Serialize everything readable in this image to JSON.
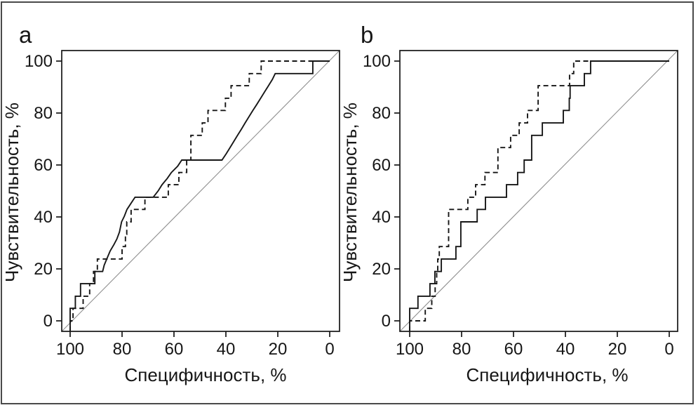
{
  "figure": {
    "description": "Two-panel ROC curve figure",
    "frame_color": "#4a4a4a",
    "background": "#ffffff",
    "panel_letters": [
      "a",
      "b"
    ]
  },
  "chart_data": [
    {
      "panel": "a",
      "type": "line",
      "title": "",
      "xlabel": "Специфичность, %",
      "ylabel": "Чувствительность, %",
      "x_ticks": [
        100,
        80,
        60,
        40,
        20,
        0
      ],
      "y_ticks": [
        0,
        20,
        40,
        60,
        80,
        100
      ],
      "x_axis_reversed": true,
      "xlim": [
        100,
        0
      ],
      "ylim": [
        0,
        100
      ],
      "grid": false,
      "legend": "none",
      "colors": {
        "curves": "#161616",
        "diagonal": "#8f8f8f"
      },
      "series": [
        {
          "name": "roc-curve-solid",
          "line_style": "solid",
          "points": [
            [
              100,
              0
            ],
            [
              100,
              4.8
            ],
            [
              98,
              4.8
            ],
            [
              98,
              9.5
            ],
            [
              96,
              9.5
            ],
            [
              96,
              14.3
            ],
            [
              90.5,
              14.3
            ],
            [
              90.5,
              19
            ],
            [
              87.5,
              19
            ],
            [
              86.9,
              21.4
            ],
            [
              85.9,
              23.8
            ],
            [
              84.6,
              26.9
            ],
            [
              83.1,
              29.4
            ],
            [
              82,
              31.5
            ],
            [
              81,
              34.2
            ],
            [
              80.2,
              38.1
            ],
            [
              79.1,
              40.3
            ],
            [
              78.1,
              42.9
            ],
            [
              76.6,
              45.2
            ],
            [
              75,
              47.6
            ],
            [
              68,
              47.6
            ],
            [
              66.1,
              50
            ],
            [
              64.6,
              52.4
            ],
            [
              62.6,
              54.8
            ],
            [
              61,
              57.1
            ],
            [
              58.6,
              59.5
            ],
            [
              57,
              61.9
            ],
            [
              41.5,
              61.9
            ],
            [
              39.9,
              64.3
            ],
            [
              38.4,
              66.7
            ],
            [
              37,
              69
            ],
            [
              35.5,
              71.4
            ],
            [
              34,
              73.8
            ],
            [
              32.6,
              76.2
            ],
            [
              31.1,
              78.6
            ],
            [
              29.6,
              81
            ],
            [
              28.1,
              83.3
            ],
            [
              26.6,
              85.7
            ],
            [
              25.1,
              88.1
            ],
            [
              23.6,
              90.5
            ],
            [
              22.1,
              92.9
            ],
            [
              21,
              95.2
            ],
            [
              6.5,
              95.2
            ],
            [
              6.5,
              100
            ],
            [
              0,
              100
            ]
          ]
        },
        {
          "name": "roc-curve-dashed",
          "line_style": "dashed",
          "points": [
            [
              100,
              0
            ],
            [
              98.9,
              0
            ],
            [
              98.9,
              4.8
            ],
            [
              95,
              4.8
            ],
            [
              95,
              9.5
            ],
            [
              92.5,
              9.5
            ],
            [
              92.5,
              14.3
            ],
            [
              91,
              14.3
            ],
            [
              91,
              19
            ],
            [
              89.5,
              19
            ],
            [
              89.5,
              23.8
            ],
            [
              80,
              23.8
            ],
            [
              80,
              28.6
            ],
            [
              78.7,
              28.6
            ],
            [
              78.7,
              33.3
            ],
            [
              78.2,
              33.3
            ],
            [
              78.2,
              38.1
            ],
            [
              76.5,
              38.1
            ],
            [
              76.5,
              42.9
            ],
            [
              71.2,
              42.9
            ],
            [
              71.2,
              47.6
            ],
            [
              62.2,
              47.6
            ],
            [
              62.2,
              52.4
            ],
            [
              58.1,
              52.4
            ],
            [
              58.1,
              57.1
            ],
            [
              55.1,
              57.1
            ],
            [
              55.1,
              61.9
            ],
            [
              53.5,
              61.9
            ],
            [
              53.5,
              66.7
            ],
            [
              53.5,
              71.4
            ],
            [
              49.1,
              71.4
            ],
            [
              49.1,
              76.2
            ],
            [
              46.9,
              76.2
            ],
            [
              46.9,
              81
            ],
            [
              40.2,
              81
            ],
            [
              40.2,
              85.7
            ],
            [
              38,
              85.7
            ],
            [
              38,
              90.5
            ],
            [
              31,
              90.5
            ],
            [
              31,
              95.2
            ],
            [
              26.4,
              95.2
            ],
            [
              26.4,
              100
            ],
            [
              0,
              100
            ]
          ]
        },
        {
          "name": "reference-diagonal",
          "line_style": "thin-gray",
          "points": [
            [
              100,
              0
            ],
            [
              0,
              100
            ]
          ]
        }
      ]
    },
    {
      "panel": "b",
      "type": "line",
      "title": "",
      "xlabel": "Специфичность, %",
      "ylabel": "Чувствительность, %",
      "x_ticks": [
        100,
        80,
        60,
        40,
        20,
        0
      ],
      "y_ticks": [
        0,
        20,
        40,
        60,
        80,
        100
      ],
      "x_axis_reversed": true,
      "xlim": [
        100,
        0
      ],
      "ylim": [
        0,
        100
      ],
      "grid": false,
      "legend": "none",
      "colors": {
        "curves": "#161616",
        "diagonal": "#8f8f8f"
      },
      "series": [
        {
          "name": "roc-curve-solid",
          "line_style": "solid",
          "points": [
            [
              100,
              0
            ],
            [
              100,
              4.8
            ],
            [
              96.8,
              4.8
            ],
            [
              96.8,
              9.5
            ],
            [
              92.2,
              9.5
            ],
            [
              92.2,
              14.3
            ],
            [
              90.3,
              14.3
            ],
            [
              90.3,
              19
            ],
            [
              87.8,
              19
            ],
            [
              87.8,
              23.8
            ],
            [
              82.2,
              23.8
            ],
            [
              82.2,
              28.6
            ],
            [
              80.3,
              28.6
            ],
            [
              80.3,
              33.3
            ],
            [
              80.3,
              38.1
            ],
            [
              74,
              38.1
            ],
            [
              74,
              42.9
            ],
            [
              70.8,
              42.9
            ],
            [
              70.8,
              47.6
            ],
            [
              62.7,
              47.6
            ],
            [
              62.7,
              52.4
            ],
            [
              58.4,
              52.4
            ],
            [
              58.4,
              57.1
            ],
            [
              55.9,
              57.1
            ],
            [
              55.9,
              61.9
            ],
            [
              53,
              61.9
            ],
            [
              53,
              66.7
            ],
            [
              53,
              71.4
            ],
            [
              48.9,
              71.4
            ],
            [
              48.9,
              76.2
            ],
            [
              40.8,
              76.2
            ],
            [
              40.8,
              81
            ],
            [
              38.5,
              81
            ],
            [
              38.5,
              85.7
            ],
            [
              38.2,
              85.7
            ],
            [
              38.2,
              90.5
            ],
            [
              32.7,
              90.5
            ],
            [
              32.7,
              95.2
            ],
            [
              30.3,
              95.2
            ],
            [
              30.3,
              100
            ],
            [
              0,
              100
            ]
          ]
        },
        {
          "name": "roc-curve-dashed",
          "line_style": "dashed",
          "points": [
            [
              100,
              0
            ],
            [
              94,
              0
            ],
            [
              94,
              4.8
            ],
            [
              91.5,
              4.8
            ],
            [
              91.5,
              9.5
            ],
            [
              90.2,
              9.5
            ],
            [
              90.2,
              14.3
            ],
            [
              89.6,
              14.3
            ],
            [
              89.6,
              19
            ],
            [
              89.2,
              19
            ],
            [
              89.2,
              23.8
            ],
            [
              88.6,
              23.8
            ],
            [
              88.6,
              28.6
            ],
            [
              85,
              28.6
            ],
            [
              85,
              33.3
            ],
            [
              85,
              38.1
            ],
            [
              85,
              42.9
            ],
            [
              77.6,
              42.9
            ],
            [
              77.6,
              47.6
            ],
            [
              74.6,
              47.6
            ],
            [
              74.6,
              52.4
            ],
            [
              71,
              52.4
            ],
            [
              71,
              57.1
            ],
            [
              66,
              57.1
            ],
            [
              66,
              61.9
            ],
            [
              66,
              66.7
            ],
            [
              61.1,
              66.7
            ],
            [
              61.1,
              71.4
            ],
            [
              57.8,
              71.4
            ],
            [
              57.8,
              76.2
            ],
            [
              54.6,
              76.2
            ],
            [
              54.6,
              81
            ],
            [
              50.5,
              81
            ],
            [
              50.5,
              85.7
            ],
            [
              50.5,
              90.5
            ],
            [
              38.4,
              90.5
            ],
            [
              38.4,
              95.2
            ],
            [
              36.8,
              95.2
            ],
            [
              36.8,
              100
            ],
            [
              0,
              100
            ]
          ]
        },
        {
          "name": "reference-diagonal",
          "line_style": "thin-gray",
          "points": [
            [
              100,
              0
            ],
            [
              0,
              100
            ]
          ]
        }
      ]
    }
  ]
}
